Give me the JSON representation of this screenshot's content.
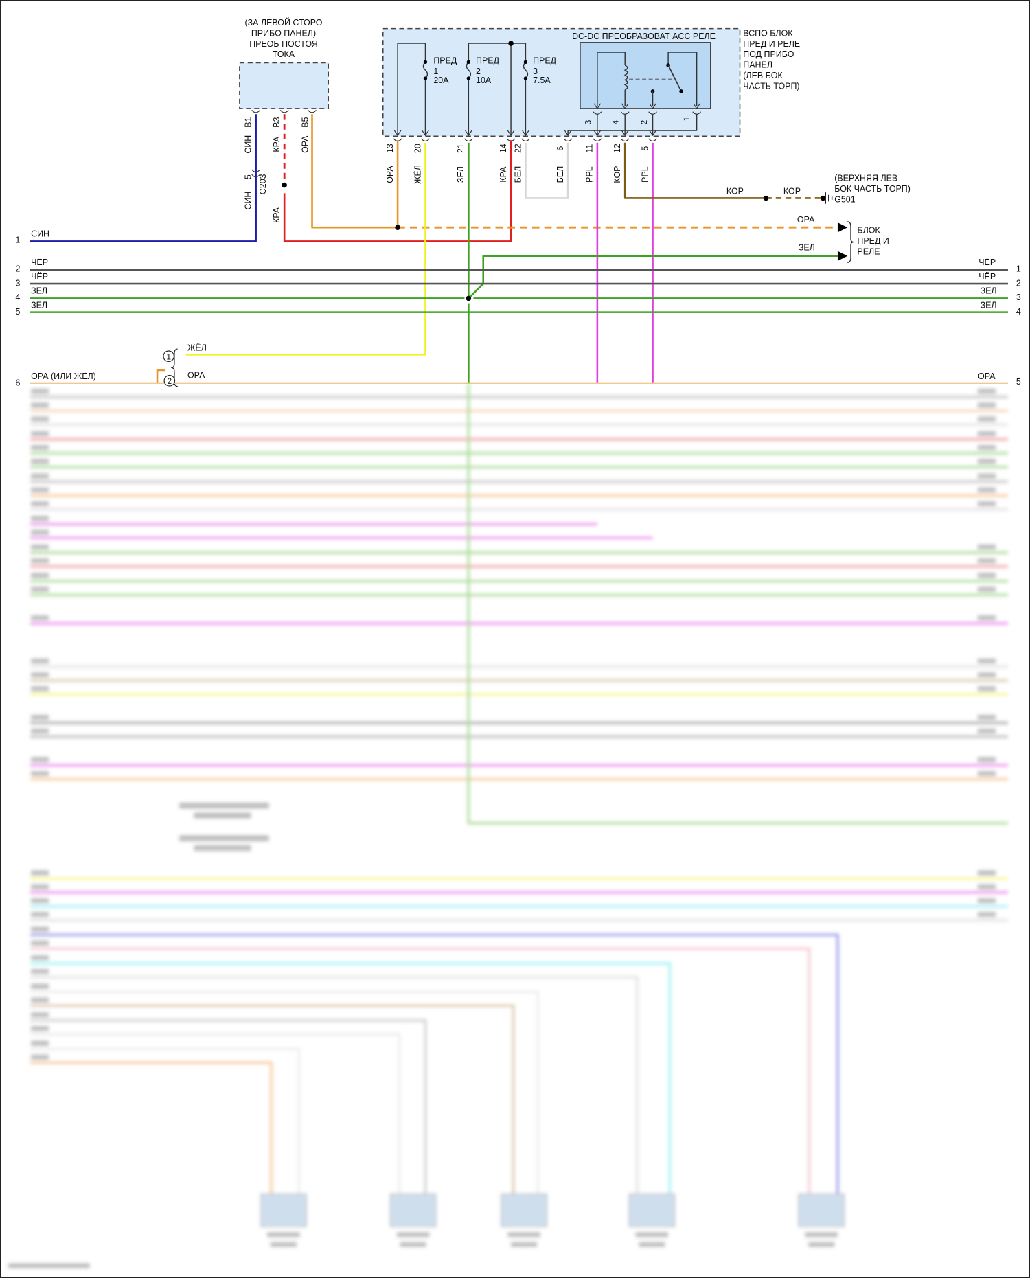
{
  "dcdc_converter": {
    "location_lines": [
      "(ЗА ЛЕВОЙ СТОРО",
      "ПРИБО ПАНЕЛ)",
      "ПРЕОБ ПОСТОЯ",
      "ТОКА"
    ],
    "pins": [
      {
        "pin": "B1",
        "color": "СИН"
      },
      {
        "pin": "B3",
        "color": "КРА"
      },
      {
        "pin": "B5",
        "color": "ОРА"
      }
    ],
    "inline_connector": {
      "pin": "5",
      "name": "C203",
      "color_after": "СИН"
    },
    "red_after_splice": "КРА"
  },
  "fuse_block": {
    "side_lines": [
      "ВСПО БЛОК",
      "ПРЕД И РЕЛЕ",
      "ПОД ПРИБО",
      "ПАНЕЛ",
      "(ЛЕВ БОК",
      "ЧАСТЬ ТОРП)"
    ],
    "fuses": [
      {
        "label": "ПРЕД",
        "number": "1",
        "rating": "20A"
      },
      {
        "label": "ПРЕД",
        "number": "2",
        "rating": "10A"
      },
      {
        "label": "ПРЕД",
        "number": "3",
        "rating": "7.5A"
      }
    ],
    "relay": {
      "title": "DC-DC ПРЕОБРАЗОВАТ ACC РЕЛЕ",
      "pins": [
        "3",
        "4",
        "2",
        "1"
      ]
    },
    "pins": [
      {
        "pin": "13",
        "color": "ОРА"
      },
      {
        "pin": "20",
        "color": "ЖЁЛ"
      },
      {
        "pin": "21",
        "color": "ЗЕЛ"
      },
      {
        "pin": "14",
        "color": "КРА"
      },
      {
        "pin": "22",
        "color": "БЕЛ"
      },
      {
        "pin": "6",
        "color": "БЕЛ"
      },
      {
        "pin": "11",
        "color": "PPL"
      },
      {
        "pin": "12",
        "color": "КОР"
      },
      {
        "pin": "5",
        "color": "PPL"
      }
    ]
  },
  "ground": {
    "wire1": "КОР",
    "wire2": "КОР",
    "location_lines": [
      "(ВЕРХНЯЯ ЛЕВ",
      "БОК ЧАСТЬ ТОРП)"
    ],
    "name": "G501"
  },
  "fuse_relay_block": {
    "orange_label": "ОРА",
    "green_label": "ЗЕЛ",
    "lines": [
      "БЛОК",
      "ПРЕД И",
      "РЕЛЕ"
    ]
  },
  "left_wires": [
    {
      "num": "1",
      "color": "СИН"
    },
    {
      "num": "2",
      "color": "ЧЁР"
    },
    {
      "num": "3",
      "color": "ЧЁР"
    },
    {
      "num": "4",
      "color": "ЗЕЛ"
    },
    {
      "num": "5",
      "color": "ЗЕЛ"
    },
    {
      "num": "6",
      "color": "ОРА (ИЛИ ЖЁЛ)"
    }
  ],
  "right_wires": [
    {
      "num": "1",
      "color": "ЧЁР"
    },
    {
      "num": "2",
      "color": "ЧЁР"
    },
    {
      "num": "3",
      "color": "ЗЕЛ"
    },
    {
      "num": "4",
      "color": "ЗЕЛ"
    },
    {
      "num": "5",
      "color": "ОРА"
    }
  ],
  "option_notes": [
    {
      "marker": "1",
      "color": "ЖЁЛ"
    },
    {
      "marker": "2",
      "color": "ОРА"
    }
  ],
  "wire_colors": {
    "СИН": "#1c1ca8",
    "КРА": "#e02020",
    "ОРА": "#e8962a",
    "ЖЁЛ": "#f2f222",
    "ЗЕЛ": "#3ca322",
    "ЧЁР": "#555555",
    "БЕЛ": "#d6d6d6",
    "PPL": "#e040e0",
    "КОР": "#7c5c10"
  }
}
